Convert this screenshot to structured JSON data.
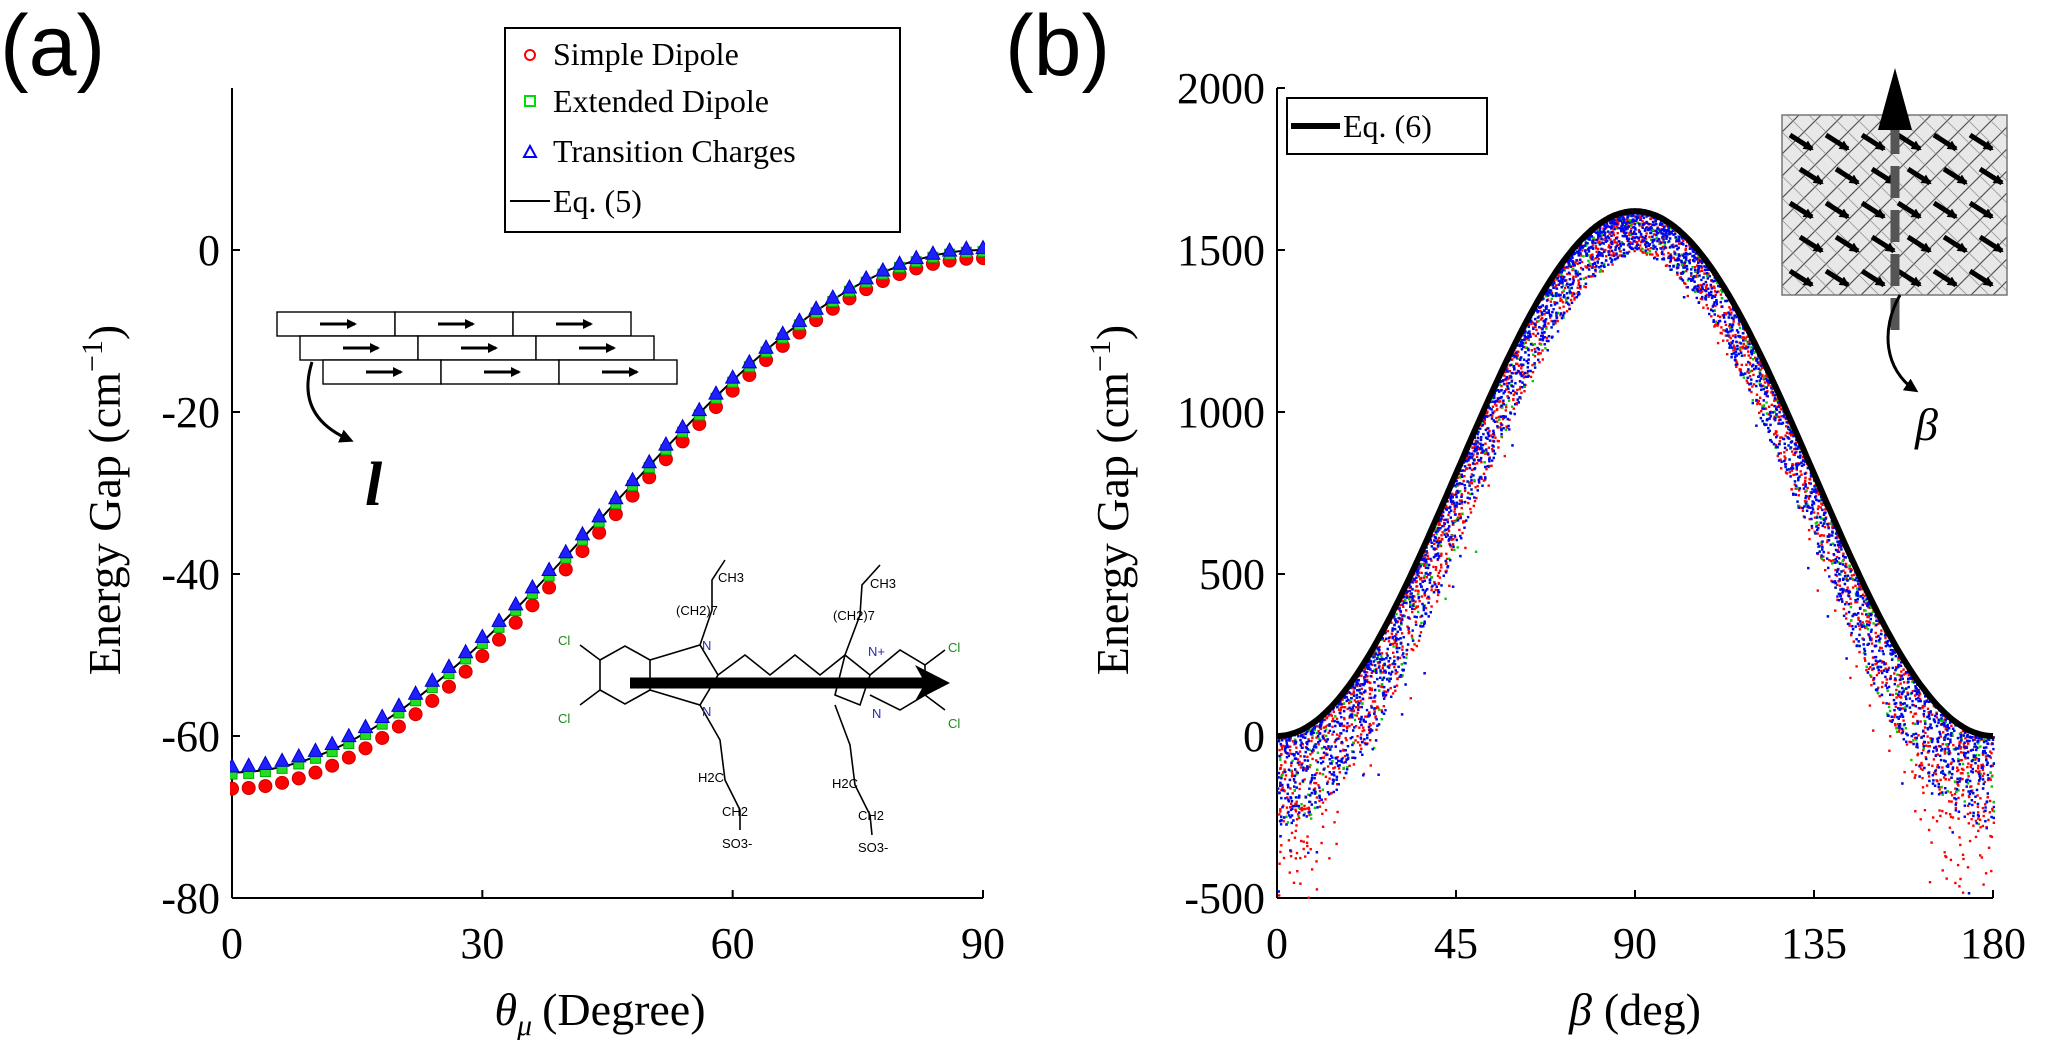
{
  "chart_data": [
    {
      "panel_label": "(a)",
      "type": "scatter",
      "xlabel_symbol": "θ",
      "xlabel_subscript": "μ",
      "xlabel_text": "(Degree)",
      "ylabel": "Energy Gap (cm",
      "ylabel_exp": "−1",
      "ylabel_close": ")",
      "xlim": [
        0,
        90
      ],
      "ylim": [
        -80,
        20
      ],
      "xticks": [
        0,
        30,
        60,
        90
      ],
      "yticks": [
        0,
        -20,
        -40,
        -60,
        -80
      ],
      "ytick_labels": [
        "0",
        "-20",
        "-40",
        "-60",
        "-80"
      ],
      "legend": [
        {
          "label": "Simple Dipole",
          "marker": "circle",
          "color": "#ff0000"
        },
        {
          "label": "Extended Dipole",
          "marker": "square",
          "color": "#00dd00"
        },
        {
          "label": "Transition Charges",
          "marker": "triangle",
          "color": "#0000ff"
        },
        {
          "label": "Eq. (5)",
          "marker": "line",
          "color": "#000000"
        }
      ],
      "legend_position": "top-right",
      "x": [
        0,
        2,
        4,
        6,
        8,
        10,
        12,
        14,
        16,
        18,
        20,
        22,
        24,
        26,
        28,
        30,
        32,
        34,
        36,
        38,
        40,
        42,
        44,
        46,
        48,
        50,
        52,
        54,
        56,
        58,
        60,
        62,
        64,
        66,
        68,
        70,
        72,
        74,
        76,
        78,
        80,
        82,
        84,
        86,
        88,
        90
      ],
      "series": [
        {
          "name": "Simple Dipole",
          "amplitude": -65.5,
          "offset": -1.0
        },
        {
          "name": "Extended Dipole",
          "amplitude": -64.5,
          "offset": -0.2
        },
        {
          "name": "Transition Charges",
          "amplitude": -64.0,
          "offset": 0.3
        },
        {
          "name": "Eq. (5)",
          "amplitude": -64.5,
          "offset": 0.0,
          "model": "y = A·cos²(θ) + c"
        }
      ],
      "inset_label": "l",
      "molecule_labels": [
        "CH3",
        "(CH2)7",
        "(CH2)7",
        "CH3",
        "Cl",
        "Cl",
        "Cl",
        "Cl",
        "N",
        "N",
        "N",
        "N+",
        "SO3-",
        "SO3-",
        "H2C",
        "CH2",
        "H2C",
        "CH2"
      ]
    },
    {
      "panel_label": "(b)",
      "type": "scatter",
      "xlabel_symbol": "β",
      "xlabel_text": "(deg)",
      "ylabel": "Energy Gap (cm",
      "ylabel_exp": "−1",
      "ylabel_close": ")",
      "xlim": [
        0,
        180
      ],
      "ylim": [
        -500,
        2000
      ],
      "xticks": [
        0,
        45,
        90,
        135,
        180
      ],
      "yticks": [
        2000,
        1500,
        1000,
        500,
        0,
        -500
      ],
      "ytick_labels": [
        "2000",
        "1500",
        "1000",
        "500",
        "0",
        "-500"
      ],
      "legend": [
        {
          "label": "Eq. (6)",
          "marker": "line",
          "color": "#000000"
        }
      ],
      "legend_position": "top-left",
      "curve": {
        "name": "Eq. (6)",
        "model": "y = 1620·sin²(β)",
        "peak": 1620,
        "x": [
          0,
          180
        ]
      },
      "scatter_colors": [
        "#ff0000",
        "#00cc00",
        "#0000ff"
      ],
      "inset_label": "β"
    }
  ]
}
